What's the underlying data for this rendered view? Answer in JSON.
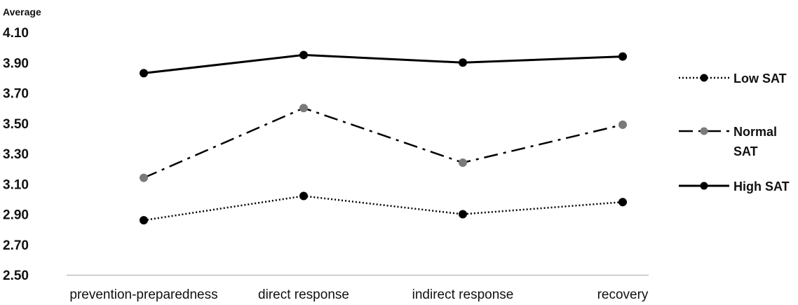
{
  "chart_data": {
    "type": "line",
    "ylabel": "Average",
    "xlabel": "",
    "ylim": [
      2.5,
      4.1
    ],
    "yticks": [
      "4.10",
      "3.90",
      "3.70",
      "3.50",
      "3.30",
      "3.10",
      "2.90",
      "2.70",
      "2.50"
    ],
    "categories": [
      "prevention-preparedness",
      "direct response",
      "indirect response",
      "recovery"
    ],
    "legend_position": "right",
    "grid": false,
    "series": [
      {
        "name": "Low SAT",
        "values": [
          2.86,
          3.02,
          2.9,
          2.98
        ],
        "line_style": "dotted",
        "color": "#000000",
        "marker_color": "#000000"
      },
      {
        "name": "Normal SAT",
        "values": [
          3.14,
          3.6,
          3.24,
          3.49
        ],
        "line_style": "dash-dot",
        "color": "#000000",
        "marker_color": "#7a7a7a"
      },
      {
        "name": "High SAT",
        "values": [
          3.83,
          3.95,
          3.9,
          3.94
        ],
        "line_style": "solid",
        "color": "#000000",
        "marker_color": "#000000"
      }
    ],
    "legend_labels": [
      [
        "Low SAT"
      ],
      [
        "Normal",
        "SAT"
      ],
      [
        "High SAT"
      ]
    ]
  }
}
